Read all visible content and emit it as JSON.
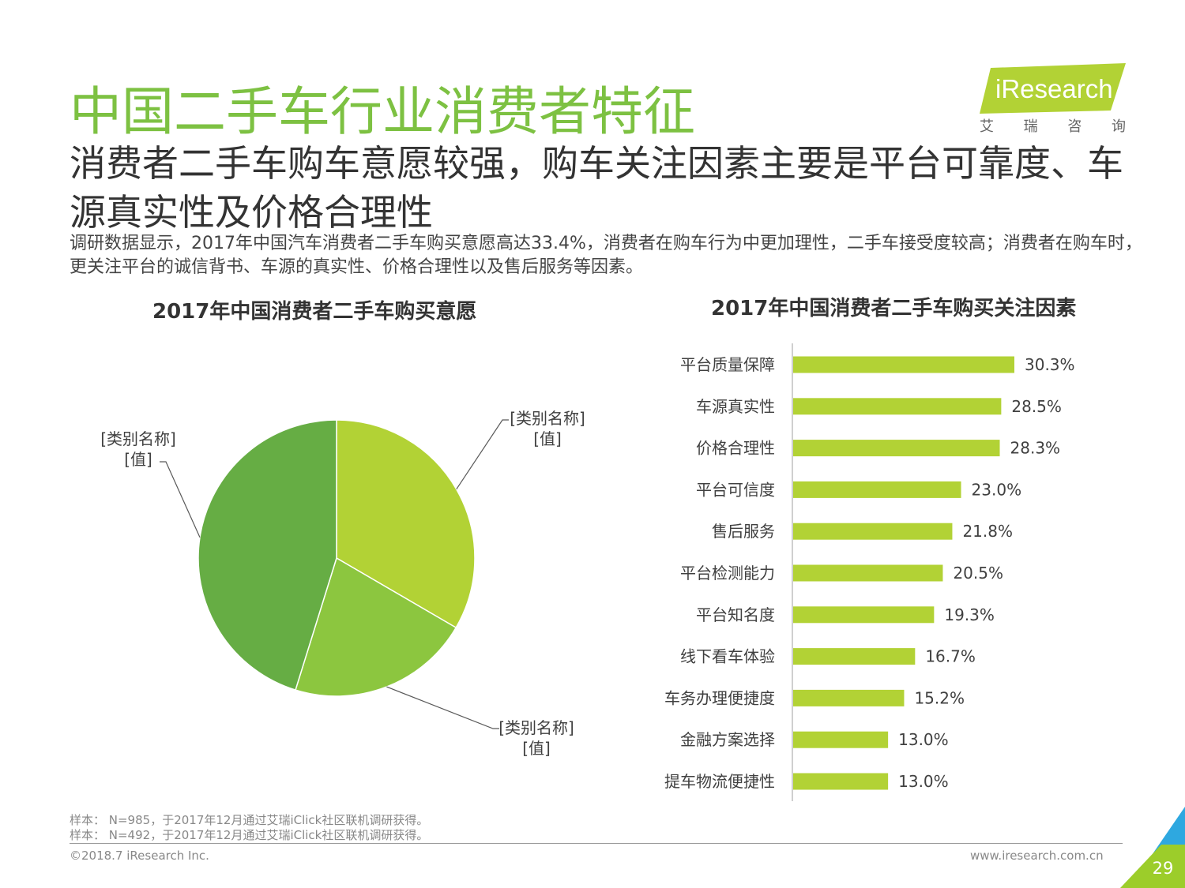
{
  "header": {
    "title": "中国二手车行业消费者特征",
    "subtitle": "消费者二手车购车意愿较强，购车关注因素主要是平台可靠度、车源真实性及价格合理性",
    "description": "调研数据显示，2017年中国汽车消费者二手车购买意愿高达33.4%，消费者在购车行为中更加理性，二手车接受度较高；消费者在购车时，更关注平台的诚信背书、车源的真实性、价格合理性以及售后服务等因素。"
  },
  "logo": {
    "brand": "iResearch",
    "cn": [
      "艾",
      "瑞",
      "咨",
      "询"
    ]
  },
  "chart_data": [
    {
      "type": "pie",
      "title": "2017年中国消费者二手车购买意愿",
      "slices": [
        {
          "label": "[类别名称]",
          "value_label": "[值]",
          "value": 33.4,
          "color": "#b2d235"
        },
        {
          "label": "[类别名称]",
          "value_label": "[值]",
          "value": 21.4,
          "color": "#8cc63f"
        },
        {
          "label": "[类别名称]",
          "value_label": "[值]",
          "value": 45.2,
          "color": "#66ad44"
        }
      ]
    },
    {
      "type": "bar",
      "orientation": "horizontal",
      "title": "2017年中国消费者二手车购买关注因素",
      "categories": [
        "平台质量保障",
        "车源真实性",
        "价格合理性",
        "平台可信度",
        "售后服务",
        "平台检测能力",
        "平台知名度",
        "线下看车体验",
        "车务办理便捷度",
        "金融方案选择",
        "提车物流便捷性"
      ],
      "values": [
        30.3,
        28.5,
        28.3,
        23.0,
        21.8,
        20.5,
        19.3,
        16.7,
        15.2,
        13.0,
        13.0
      ],
      "value_labels": [
        "30.3%",
        "28.5%",
        "28.3%",
        "23.0%",
        "21.8%",
        "20.5%",
        "19.3%",
        "16.7%",
        "15.2%",
        "13.0%",
        "13.0%"
      ],
      "color": "#b2d235",
      "xlim": [
        0,
        32
      ]
    }
  ],
  "notes": [
    "样本： N=985，于2017年12月通过艾瑞iClick社区联机调研获得。",
    "样本： N=492，于2017年12月通过艾瑞iClick社区联机调研获得。"
  ],
  "footer": {
    "copyright": "©2018.7 iResearch Inc.",
    "website": "www.iresearch.com.cn",
    "page_number": "29"
  }
}
